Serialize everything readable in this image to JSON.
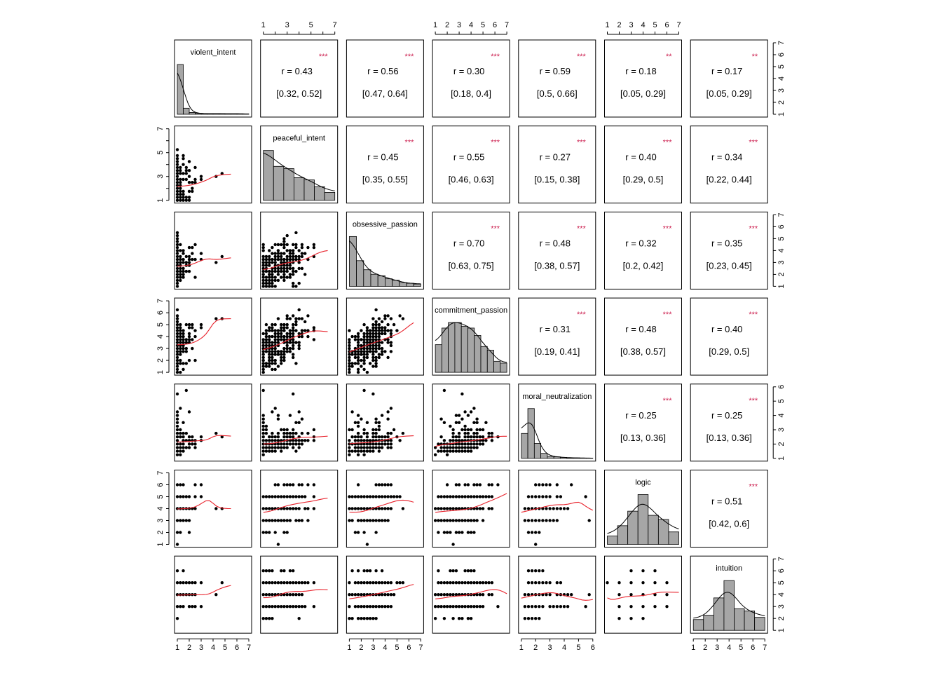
{
  "chart_data": {
    "type": "scatter",
    "subtype": "pairs-panels correlation matrix",
    "variables": [
      "violent_intent",
      "peaceful_intent",
      "obsessive_passion",
      "commitment_passion",
      "moral_neutralization",
      "logic",
      "intuition"
    ],
    "ranges": {
      "violent_intent": [
        1,
        7
      ],
      "peaceful_intent": [
        1,
        7
      ],
      "obsessive_passion": [
        1,
        7
      ],
      "commitment_passion": [
        1,
        7
      ],
      "moral_neutralization": [
        1,
        6
      ],
      "logic": [
        1,
        7
      ],
      "intuition": [
        1,
        7
      ]
    },
    "axis_ticks": {
      "top_row_1": [
        "1",
        "3",
        "5",
        "7"
      ],
      "top_col_3": [
        "1",
        "2",
        "3",
        "4",
        "5",
        "6",
        "7"
      ],
      "top_col_5": [
        "1",
        "2",
        "3",
        "4",
        "5",
        "6",
        "7"
      ],
      "bottom_col_0": [
        "1",
        "2",
        "3",
        "4",
        "5",
        "6",
        "7"
      ],
      "bottom_col_2": [
        "1",
        "2",
        "3",
        "4",
        "5",
        "6",
        "7"
      ],
      "bottom_col_4": [
        "1",
        "2",
        "3",
        "4",
        "5",
        "6"
      ],
      "bottom_col_6": [
        "1",
        "2",
        "3",
        "4",
        "5",
        "6",
        "7"
      ],
      "left_row_1": [
        "1",
        "3",
        "5",
        "7"
      ],
      "left_row_3": [
        "1",
        "2",
        "3",
        "4",
        "5",
        "6",
        "7"
      ],
      "left_row_5": [
        "1",
        "2",
        "3",
        "4",
        "5",
        "6",
        "7"
      ],
      "right_row_0": [
        "1",
        "2",
        "3",
        "4",
        "5",
        "6",
        "7"
      ],
      "right_row_2": [
        "1",
        "2",
        "3",
        "4",
        "5",
        "6",
        "7"
      ],
      "right_row_4": [
        "1",
        "2",
        "3",
        "4",
        "5",
        "6"
      ],
      "right_row_6": [
        "1",
        "2",
        "3",
        "4",
        "5",
        "6",
        "7"
      ]
    },
    "histograms": {
      "violent_intent": [
        0.82,
        0.1,
        0.03,
        0.015,
        0.01,
        0.01,
        0.01,
        0.01,
        0.008,
        0.008,
        0.008,
        0.005
      ],
      "peaceful_intent": [
        0.22,
        0.15,
        0.14,
        0.1,
        0.09,
        0.06,
        0.035
      ],
      "obsessive_passion": [
        0.33,
        0.17,
        0.11,
        0.08,
        0.07,
        0.05,
        0.04,
        0.025,
        0.02,
        0.015
      ],
      "commitment_passion": [
        0.075,
        0.12,
        0.135,
        0.135,
        0.125,
        0.12,
        0.1,
        0.07,
        0.06,
        0.03,
        0.025
      ],
      "moral_neutralization": [
        0.25,
        0.5,
        0.15,
        0.05,
        0.02,
        0.015,
        0.01,
        0.005,
        0.005,
        0.003,
        0.002
      ],
      "logic": [
        0.04,
        0.09,
        0.16,
        0.24,
        0.14,
        0.12,
        0.06
      ],
      "intuition": [
        0.05,
        0.07,
        0.15,
        0.23,
        0.1,
        0.09,
        0.06
      ]
    },
    "correlations": [
      {
        "row": 0,
        "col": 1,
        "r": "r  = 0.43",
        "ci": "[0.32, 0.52]",
        "sig": "***"
      },
      {
        "row": 0,
        "col": 2,
        "r": "r  = 0.56",
        "ci": "[0.47, 0.64]",
        "sig": "***"
      },
      {
        "row": 0,
        "col": 3,
        "r": "r  = 0.30",
        "ci": "[0.18, 0.4]",
        "sig": "***"
      },
      {
        "row": 0,
        "col": 4,
        "r": "r  = 0.59",
        "ci": "[0.5, 0.66]",
        "sig": "***"
      },
      {
        "row": 0,
        "col": 5,
        "r": "r  = 0.18",
        "ci": "[0.05, 0.29]",
        "sig": "**"
      },
      {
        "row": 0,
        "col": 6,
        "r": "r  = 0.17",
        "ci": "[0.05, 0.29]",
        "sig": "**"
      },
      {
        "row": 1,
        "col": 2,
        "r": "r  = 0.45",
        "ci": "[0.35, 0.55]",
        "sig": "***"
      },
      {
        "row": 1,
        "col": 3,
        "r": "r  = 0.55",
        "ci": "[0.46, 0.63]",
        "sig": "***"
      },
      {
        "row": 1,
        "col": 4,
        "r": "r  = 0.27",
        "ci": "[0.15, 0.38]",
        "sig": "***"
      },
      {
        "row": 1,
        "col": 5,
        "r": "r  = 0.40",
        "ci": "[0.29, 0.5]",
        "sig": "***"
      },
      {
        "row": 1,
        "col": 6,
        "r": "r  = 0.34",
        "ci": "[0.22, 0.44]",
        "sig": "***"
      },
      {
        "row": 2,
        "col": 3,
        "r": "r  = 0.70",
        "ci": "[0.63, 0.75]",
        "sig": "***"
      },
      {
        "row": 2,
        "col": 4,
        "r": "r  = 0.48",
        "ci": "[0.38, 0.57]",
        "sig": "***"
      },
      {
        "row": 2,
        "col": 5,
        "r": "r  = 0.32",
        "ci": "[0.2, 0.42]",
        "sig": "***"
      },
      {
        "row": 2,
        "col": 6,
        "r": "r  = 0.35",
        "ci": "[0.23, 0.45]",
        "sig": "***"
      },
      {
        "row": 3,
        "col": 4,
        "r": "r  = 0.31",
        "ci": "[0.19, 0.41]",
        "sig": "***"
      },
      {
        "row": 3,
        "col": 5,
        "r": "r  = 0.48",
        "ci": "[0.38, 0.57]",
        "sig": "***"
      },
      {
        "row": 3,
        "col": 6,
        "r": "r  = 0.40",
        "ci": "[0.29, 0.5]",
        "sig": "***"
      },
      {
        "row": 4,
        "col": 5,
        "r": "r  = 0.25",
        "ci": "[0.13, 0.36]",
        "sig": "***"
      },
      {
        "row": 4,
        "col": 6,
        "r": "r  = 0.25",
        "ci": "[0.13, 0.36]",
        "sig": "***"
      },
      {
        "row": 5,
        "col": 6,
        "r": "r  = 0.51",
        "ci": "[0.42, 0.6]",
        "sig": "***"
      }
    ],
    "title": "",
    "xlabel": "",
    "ylabel": ""
  },
  "colors": {
    "points": "#000000",
    "smoother": "#e8202a",
    "significance": "#cc1f4f",
    "histogram_fill": "#a6a6a6",
    "frame": "#000000"
  }
}
